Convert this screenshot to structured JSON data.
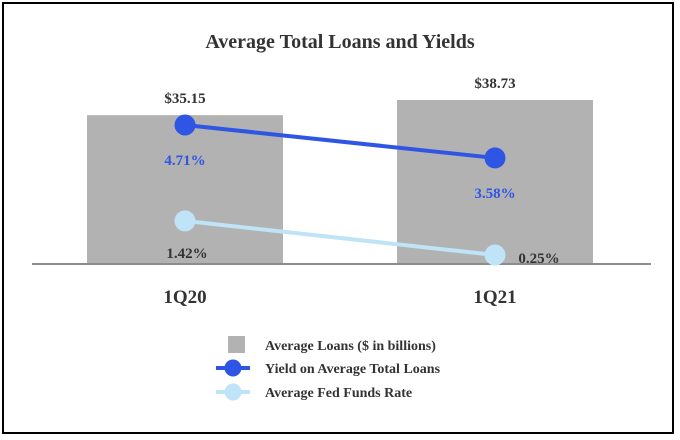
{
  "chart_data": {
    "type": "bar",
    "title": "Average Total Loans and Yields",
    "categories": [
      "1Q20",
      "1Q21"
    ],
    "bars": {
      "name": "Average Loans ($ in billions)",
      "values": [
        35.15,
        38.73
      ],
      "labels": [
        "$35.15",
        "$38.73"
      ],
      "color": "#b2b2b2"
    },
    "lines": [
      {
        "name": "Yield on Average Total Loans",
        "values": [
          4.71,
          3.58
        ],
        "labels": [
          "4.71%",
          "3.58%"
        ],
        "color": "#2f55e4",
        "label_color": "#2f55e4"
      },
      {
        "name": "Average Fed Funds Rate",
        "values": [
          1.42,
          0.25
        ],
        "labels": [
          "1.42%",
          "0.25%"
        ],
        "color": "#bfe3f7",
        "label_color": "#333333"
      }
    ],
    "legend_position": "bottom",
    "grid": false,
    "text_color": "#333333",
    "axis_color": "#8c8c8c"
  }
}
